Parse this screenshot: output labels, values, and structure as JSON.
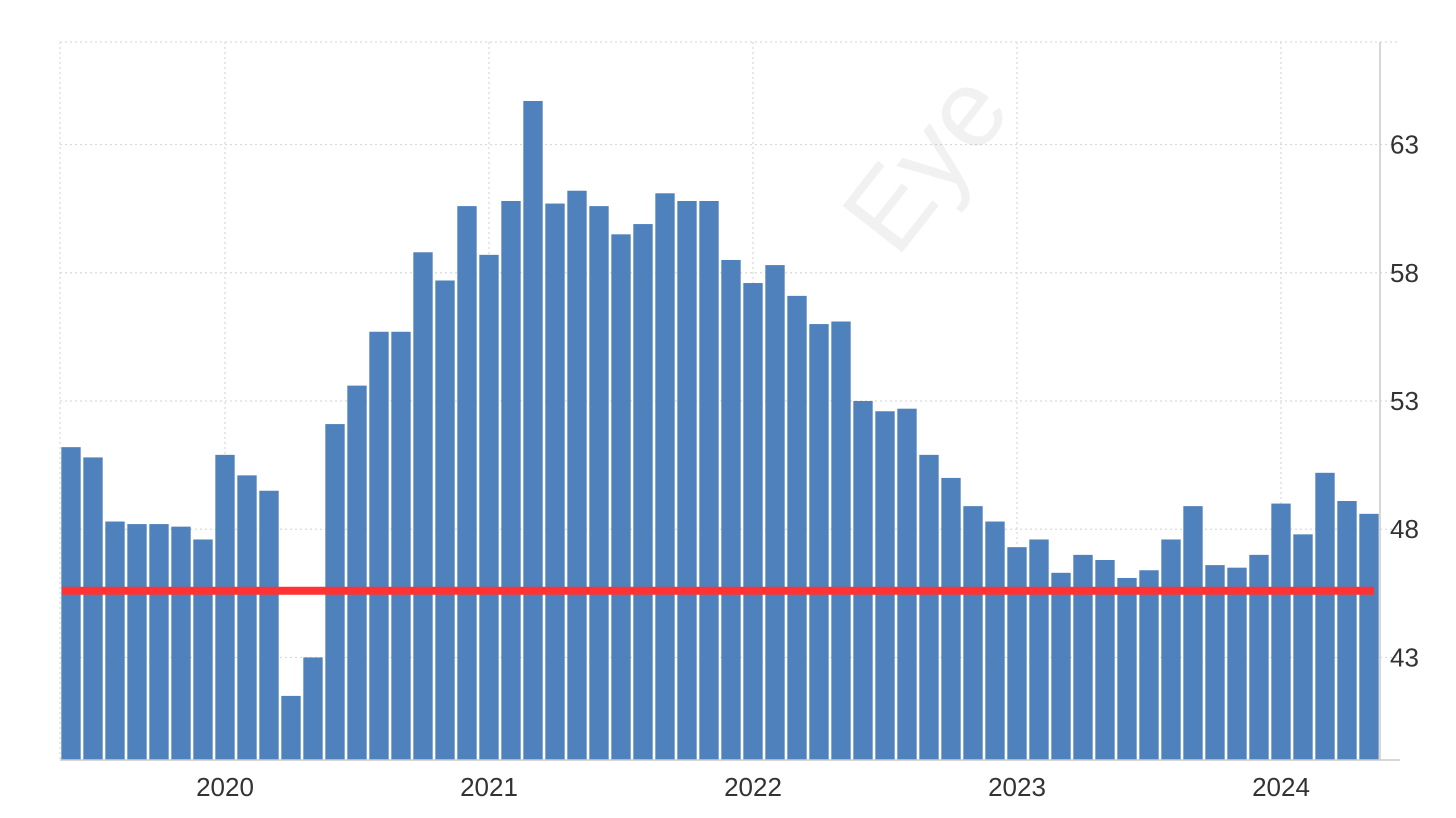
{
  "chart_data": {
    "type": "bar",
    "title": "",
    "xlabel": "",
    "ylabel": "",
    "x_tick_labels": [
      "2020",
      "2021",
      "2022",
      "2023",
      "2024"
    ],
    "y_ticks": [
      43,
      48,
      53,
      58,
      63
    ],
    "y_tick_labels": [
      "43",
      "48",
      "53",
      "58",
      "63"
    ],
    "ylim": [
      39,
      67
    ],
    "grid": true,
    "y_axis_position": "right",
    "bar_color": "#4f81bd",
    "reference_line": {
      "value": 45.6,
      "color": "#ff3333"
    },
    "watermark": "Eye",
    "series": [
      {
        "start": "2019-06",
        "frequency": "monthly",
        "values": [
          51.2,
          50.8,
          48.3,
          48.2,
          48.2,
          48.1,
          47.6,
          50.9,
          50.1,
          49.5,
          41.5,
          43.0,
          52.1,
          53.6,
          55.7,
          55.7,
          58.8,
          57.7,
          60.6,
          58.7,
          60.8,
          64.7,
          60.7,
          61.2,
          60.6,
          59.5,
          59.9,
          61.1,
          60.8,
          60.8,
          58.5,
          57.6,
          58.3,
          57.1,
          56.0,
          56.1,
          53.0,
          52.6,
          52.7,
          50.9,
          50.0,
          48.9,
          48.3,
          47.3,
          47.6,
          46.3,
          47.0,
          46.8,
          46.1,
          46.4,
          47.6,
          48.9,
          46.6,
          46.5,
          47.0,
          49.0,
          47.8,
          50.2,
          49.1,
          48.6
        ]
      }
    ]
  }
}
